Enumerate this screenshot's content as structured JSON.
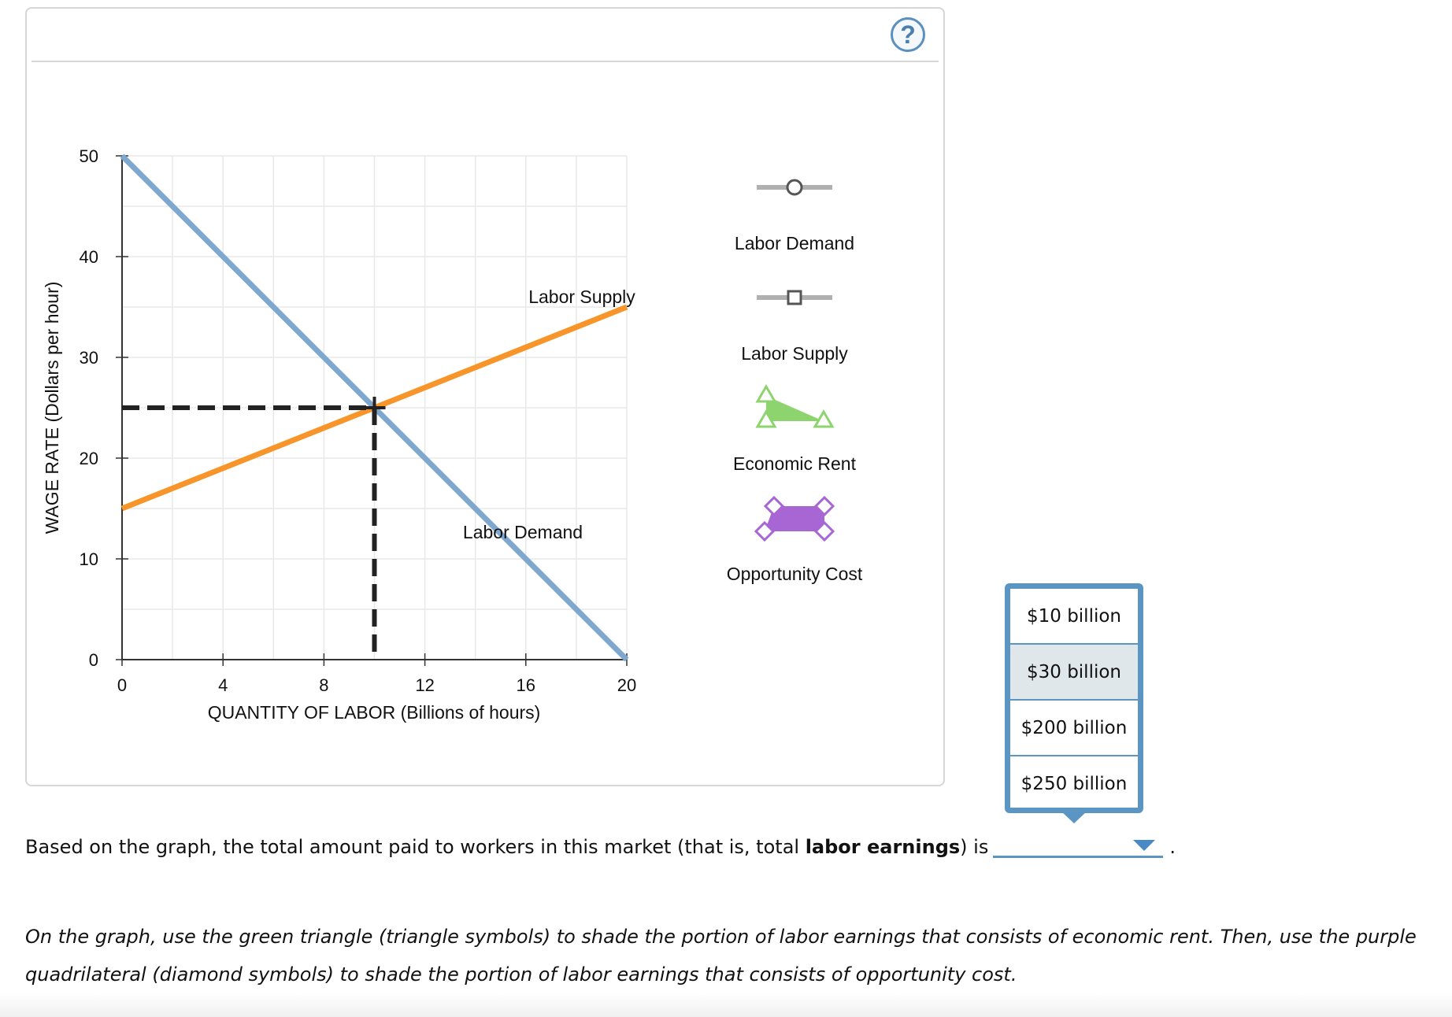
{
  "help_label": "?",
  "chart_data": {
    "type": "line",
    "xlabel": "QUANTITY OF LABOR (Billions of hours)",
    "ylabel": "WAGE RATE (Dollars per hour)",
    "xlim": [
      0,
      20
    ],
    "ylim": [
      0,
      50
    ],
    "xticks": [
      0,
      4,
      8,
      12,
      16,
      20
    ],
    "yticks": [
      0,
      10,
      20,
      30,
      40,
      50
    ],
    "grid": true,
    "series": [
      {
        "name": "Labor Demand",
        "color": "#7fa8d1",
        "points": [
          [
            0,
            50
          ],
          [
            20,
            0
          ]
        ]
      },
      {
        "name": "Labor Supply",
        "color": "#f7952b",
        "points": [
          [
            0,
            15
          ],
          [
            20,
            35
          ]
        ]
      }
    ],
    "equilibrium": {
      "x": 10,
      "y": 25
    }
  },
  "legend": {
    "items": [
      {
        "label": "Labor Demand",
        "icon": "line-circle-icon"
      },
      {
        "label": "Labor Supply",
        "icon": "line-square-icon"
      },
      {
        "label": "Economic Rent",
        "icon": "green-triangle-icon",
        "color": "#8dd46f"
      },
      {
        "label": "Opportunity Cost",
        "icon": "purple-quadrilateral-icon",
        "color": "#a866d4"
      }
    ]
  },
  "dropdown": {
    "options": [
      "$10 billion",
      "$30 billion",
      "$200 billion",
      "$250 billion"
    ],
    "highlighted": "$30 billion"
  },
  "question": {
    "before": "Based on the graph, the total amount paid to workers in this market (that is, total ",
    "bold": "labor earnings",
    "after": ") is",
    "end": "."
  },
  "instructions": {
    "line1": "On the graph, use the green triangle (triangle symbols) to shade the portion of labor earnings that consists of economic rent. Then, use the purple",
    "line2": "quadrilateral (diamond symbols) to shade the portion of labor earnings that consists of opportunity cost."
  }
}
